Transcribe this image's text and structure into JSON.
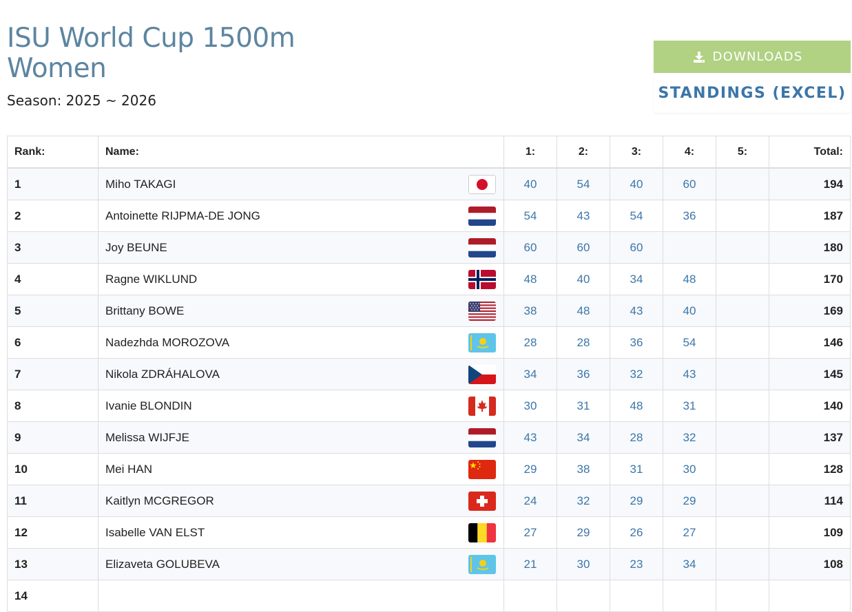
{
  "page": {
    "title": "ISU World Cup 1500m Women",
    "season": "Season: 2025 ~ 2026"
  },
  "downloads": {
    "header": "DOWNLOADS",
    "icon": "download-icon",
    "link": "STANDINGS (EXCEL)"
  },
  "table": {
    "headers": {
      "rank": "Rank:",
      "name": "Name:",
      "r1": "1:",
      "r2": "2:",
      "r3": "3:",
      "r4": "4:",
      "r5": "5:",
      "total": "Total:"
    },
    "rows": [
      {
        "rank": "1",
        "name": "Miho TAKAGI",
        "flag": "JPN",
        "r1": "40",
        "r2": "54",
        "r3": "40",
        "r4": "60",
        "r5": "",
        "total": "194"
      },
      {
        "rank": "2",
        "name": "Antoinette RIJPMA-DE JONG",
        "flag": "NED",
        "r1": "54",
        "r2": "43",
        "r3": "54",
        "r4": "36",
        "r5": "",
        "total": "187"
      },
      {
        "rank": "3",
        "name": "Joy BEUNE",
        "flag": "NED",
        "r1": "60",
        "r2": "60",
        "r3": "60",
        "r4": "",
        "r5": "",
        "total": "180"
      },
      {
        "rank": "4",
        "name": "Ragne WIKLUND",
        "flag": "NOR",
        "r1": "48",
        "r2": "40",
        "r3": "34",
        "r4": "48",
        "r5": "",
        "total": "170"
      },
      {
        "rank": "5",
        "name": "Brittany BOWE",
        "flag": "USA",
        "r1": "38",
        "r2": "48",
        "r3": "43",
        "r4": "40",
        "r5": "",
        "total": "169"
      },
      {
        "rank": "6",
        "name": "Nadezhda MOROZOVA",
        "flag": "KAZ",
        "r1": "28",
        "r2": "28",
        "r3": "36",
        "r4": "54",
        "r5": "",
        "total": "146"
      },
      {
        "rank": "7",
        "name": "Nikola ZDRÁHALOVA",
        "flag": "CZE",
        "r1": "34",
        "r2": "36",
        "r3": "32",
        "r4": "43",
        "r5": "",
        "total": "145"
      },
      {
        "rank": "8",
        "name": "Ivanie BLONDIN",
        "flag": "CAN",
        "r1": "30",
        "r2": "31",
        "r3": "48",
        "r4": "31",
        "r5": "",
        "total": "140"
      },
      {
        "rank": "9",
        "name": "Melissa WIJFJE",
        "flag": "NED",
        "r1": "43",
        "r2": "34",
        "r3": "28",
        "r4": "32",
        "r5": "",
        "total": "137"
      },
      {
        "rank": "10",
        "name": "Mei HAN",
        "flag": "CHN",
        "r1": "29",
        "r2": "38",
        "r3": "31",
        "r4": "30",
        "r5": "",
        "total": "128"
      },
      {
        "rank": "11",
        "name": "Kaitlyn MCGREGOR",
        "flag": "SUI",
        "r1": "24",
        "r2": "32",
        "r3": "29",
        "r4": "29",
        "r5": "",
        "total": "114"
      },
      {
        "rank": "12",
        "name": "Isabelle VAN ELST",
        "flag": "BEL",
        "r1": "27",
        "r2": "29",
        "r3": "26",
        "r4": "27",
        "r5": "",
        "total": "109"
      },
      {
        "rank": "13",
        "name": "Elizaveta GOLUBEVA",
        "flag": "KAZ",
        "r1": "21",
        "r2": "30",
        "r3": "23",
        "r4": "34",
        "r5": "",
        "total": "108"
      },
      {
        "rank": "14",
        "name": "",
        "flag": "",
        "r1": "",
        "r2": "",
        "r3": "",
        "r4": "",
        "r5": "",
        "total": ""
      }
    ]
  }
}
